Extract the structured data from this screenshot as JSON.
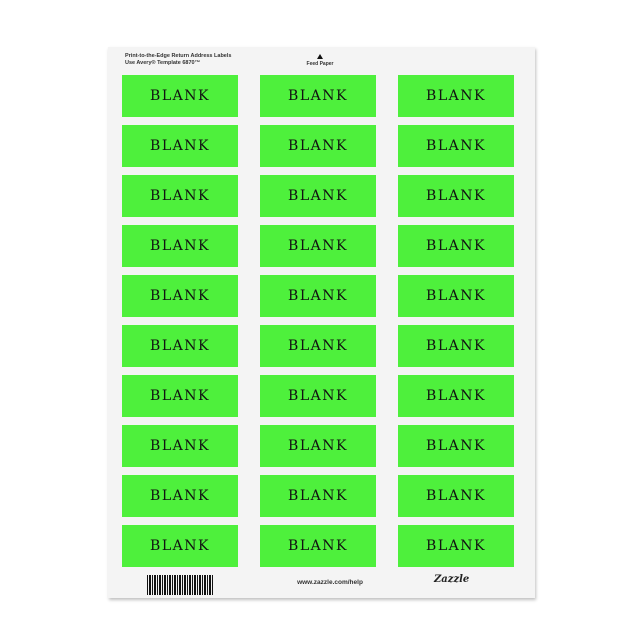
{
  "sheet": {
    "header_line1": "Print-to-the-Edge Return Address Labels",
    "header_line2": "Use Avery® Template 6870™",
    "feed_label": "Feed Paper",
    "footer_url": "www.zazzle.com/help",
    "logo_text": "Zazzle",
    "label_color": "#4ef03c",
    "columns": 3,
    "rows": 10,
    "labels": [
      "BLANK",
      "BLANK",
      "BLANK",
      "BLANK",
      "BLANK",
      "BLANK",
      "BLANK",
      "BLANK",
      "BLANK",
      "BLANK",
      "BLANK",
      "BLANK",
      "BLANK",
      "BLANK",
      "BLANK",
      "BLANK",
      "BLANK",
      "BLANK",
      "BLANK",
      "BLANK",
      "BLANK",
      "BLANK",
      "BLANK",
      "BLANK",
      "BLANK",
      "BLANK",
      "BLANK",
      "BLANK",
      "BLANK",
      "BLANK"
    ]
  }
}
